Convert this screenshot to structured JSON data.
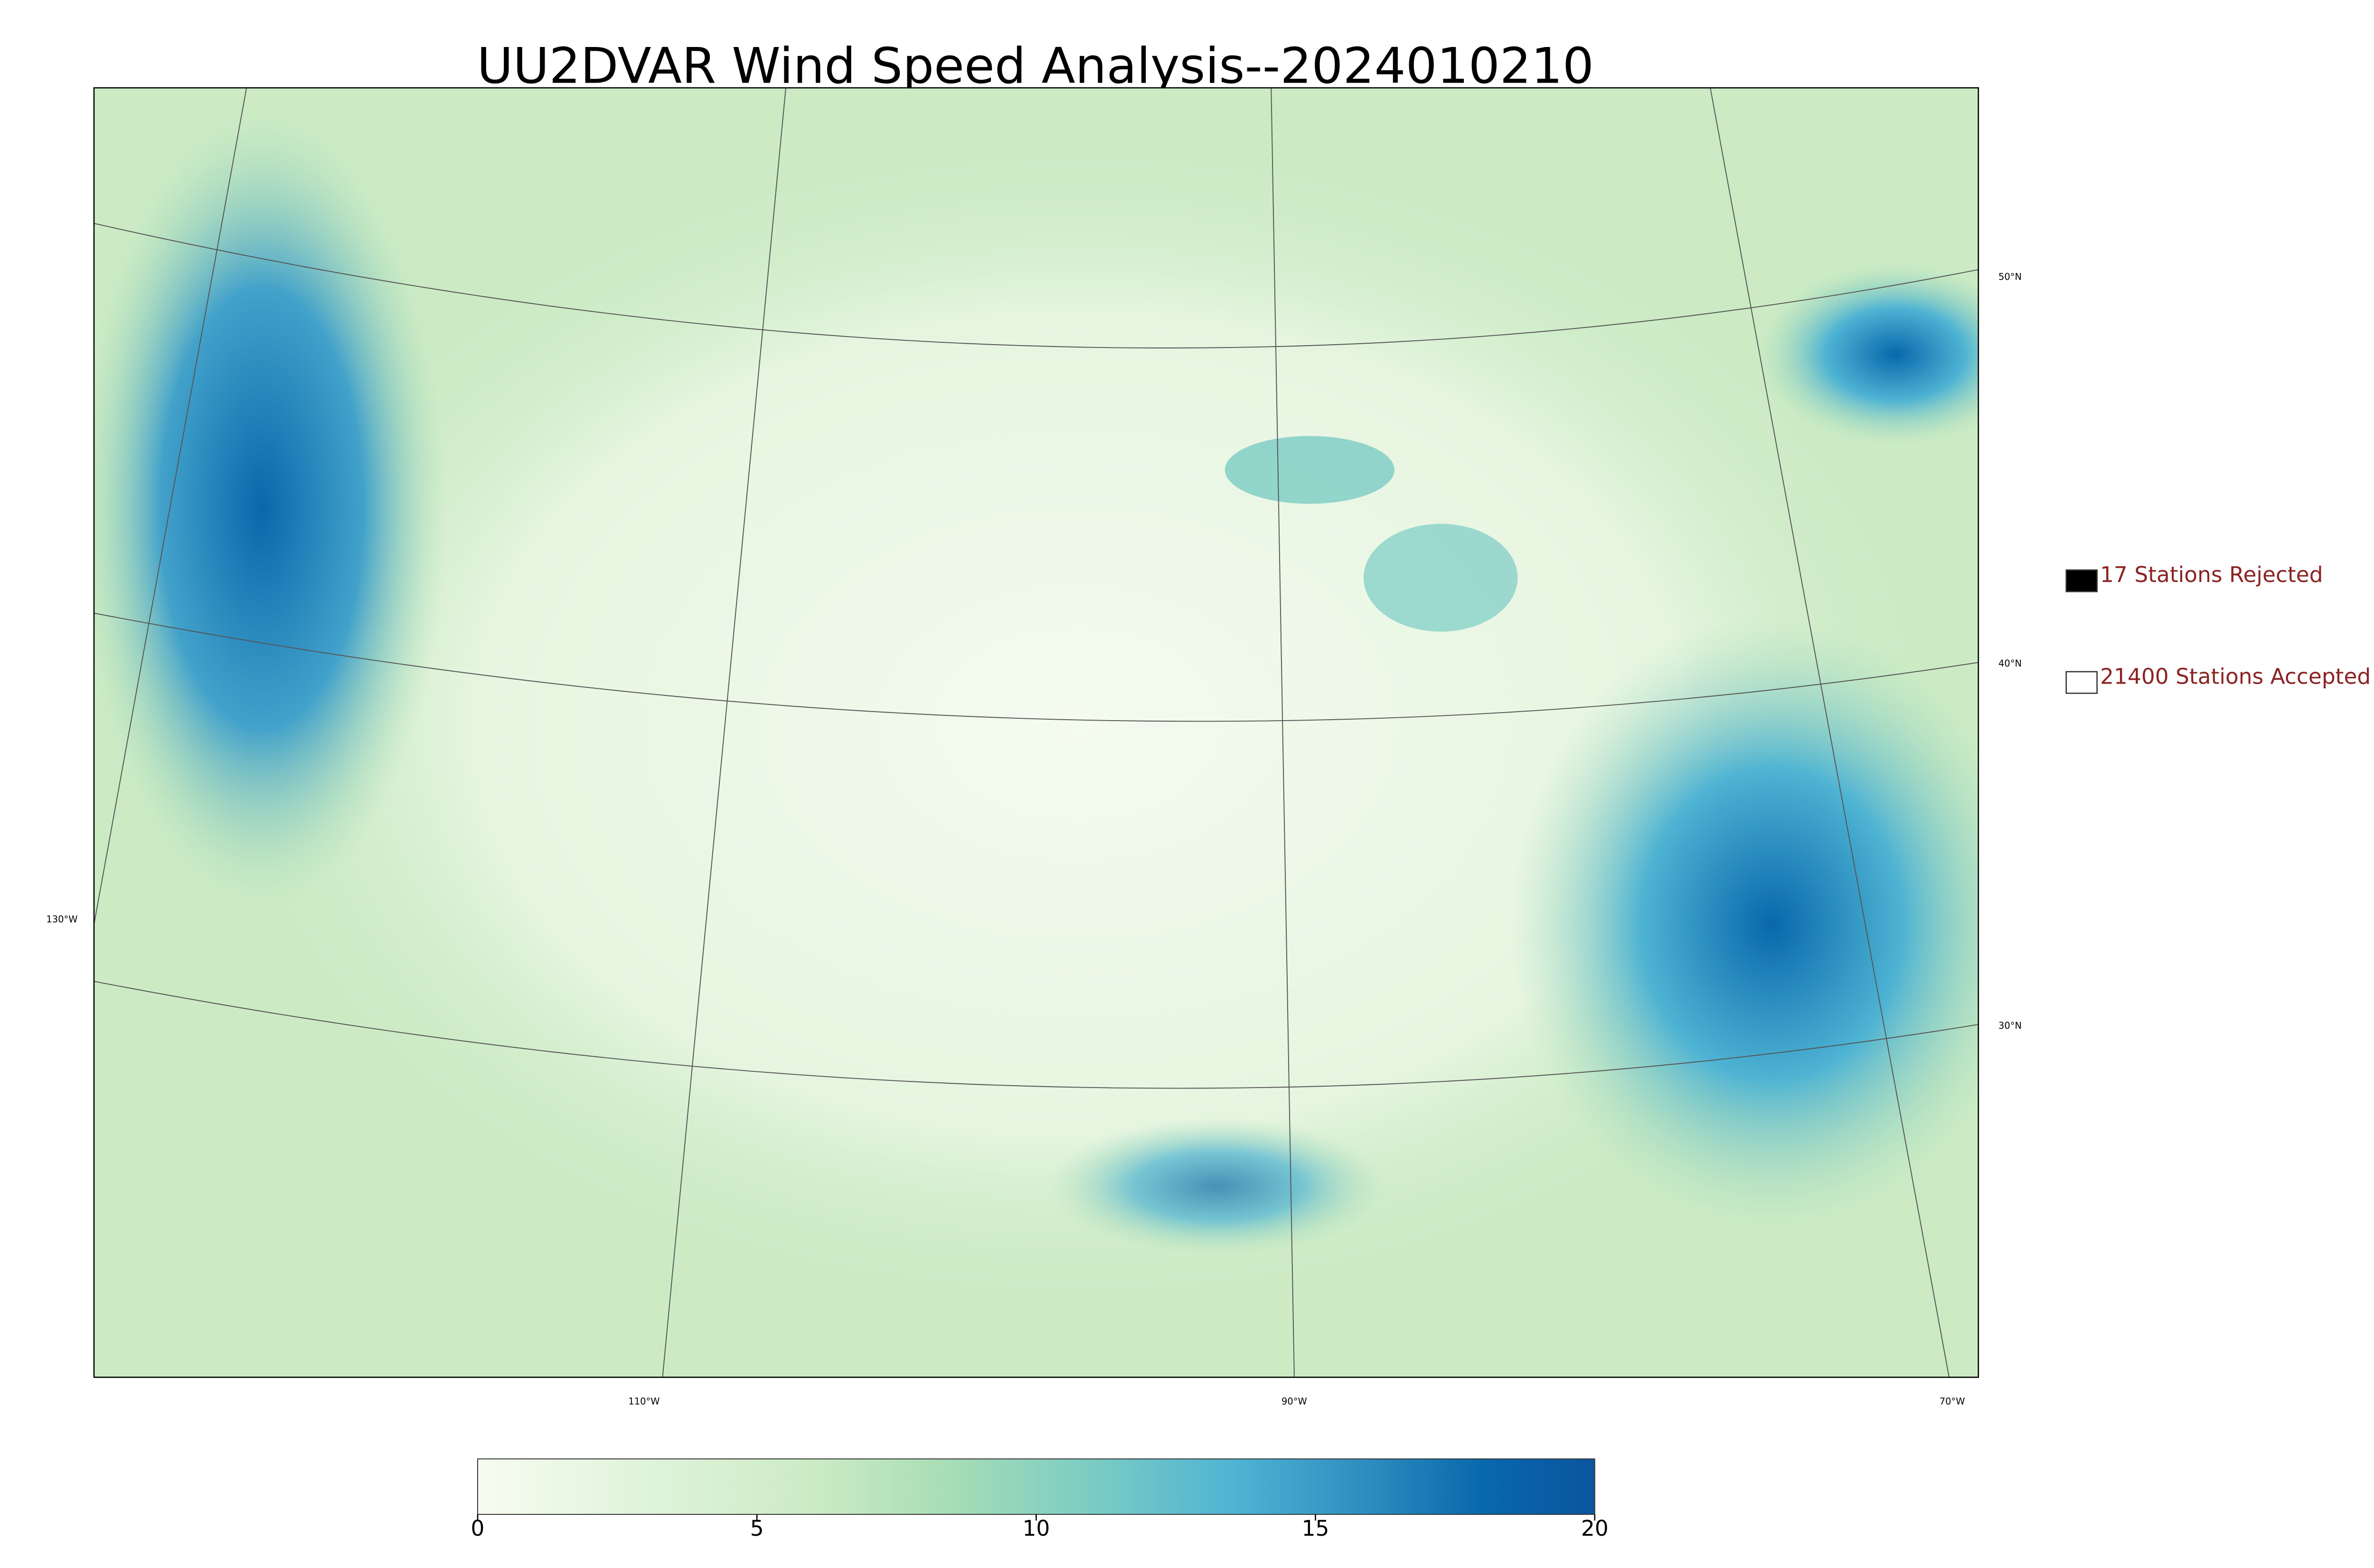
{
  "title": "UU2DVAR Wind Speed Analysis--2024010210",
  "legend": [
    {
      "label": "17 Stations Rejected",
      "color": "#000000"
    },
    {
      "label": "21400 Stations Accepted",
      "color": "#ffffff"
    }
  ],
  "map": {
    "lat_labels": [
      "50°N",
      "40°N",
      "30°N"
    ],
    "lon_labels": [
      "130°W",
      "110°W",
      "90°W",
      "70°W"
    ]
  },
  "colorbar": {
    "lim": [
      0,
      20
    ],
    "ticks": [
      0,
      5,
      10,
      15,
      20
    ]
  }
}
